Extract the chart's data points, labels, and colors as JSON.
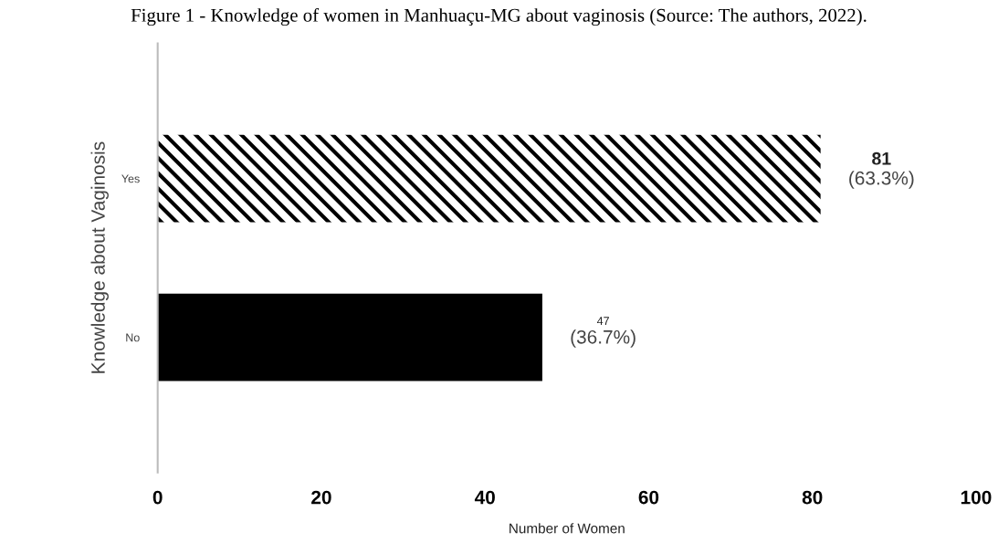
{
  "chart_data": {
    "type": "bar",
    "orientation": "horizontal",
    "title": "Figure 1 - Knowledge of women in Manhuaçu-MG about vaginosis (Source: The authors, 2022).",
    "xlabel": "Number of Women",
    "ylabel": "Knowledge about Vaginosis",
    "categories": [
      "Yes",
      "No"
    ],
    "values": [
      81,
      47
    ],
    "colors": [
      "#000000",
      "#000000"
    ],
    "value_labels": [
      "81\n(63.3%)",
      "47\n(36.7%)"
    ],
    "xlim": [
      0,
      100
    ],
    "xticks": [
      0,
      20,
      40,
      60,
      80,
      100
    ],
    "grid": false,
    "legend": false
  }
}
